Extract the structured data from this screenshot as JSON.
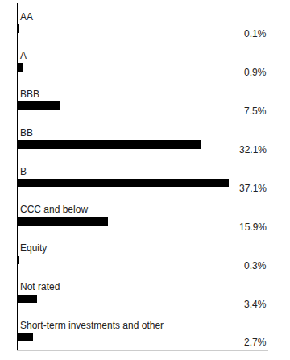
{
  "chart_data": {
    "type": "bar",
    "orientation": "horizontal",
    "categories": [
      "AA",
      "A",
      "BBB",
      "BB",
      "B",
      "CCC and below",
      "Equity",
      "Not rated",
      "Short-term investments and other"
    ],
    "values": [
      0.1,
      0.9,
      7.5,
      32.1,
      37.1,
      15.9,
      0.3,
      3.4,
      2.7
    ],
    "value_labels": [
      "0.1%",
      "0.9%",
      "7.5%",
      "32.1%",
      "37.1%",
      "15.9%",
      "0.3%",
      "3.4%",
      "2.7%"
    ],
    "color": "#000000",
    "xlim": [
      0,
      44
    ],
    "xticks": [],
    "data_labels": true,
    "tick_labels": false,
    "grid": false
  }
}
